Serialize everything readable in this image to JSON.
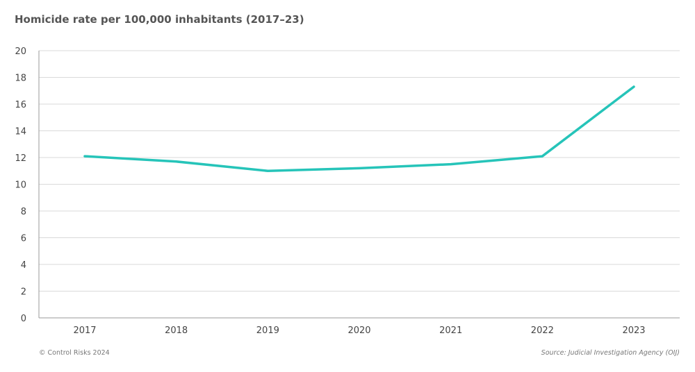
{
  "chart_data": {
    "type": "line",
    "title": "Homicide rate per 100,000 inhabitants (2017–23)",
    "xlabel": "",
    "ylabel": "",
    "categories": [
      "2017",
      "2018",
      "2019",
      "2020",
      "2021",
      "2022",
      "2023"
    ],
    "series": [
      {
        "values": [
          12.1,
          11.7,
          11.0,
          11.2,
          11.5,
          12.1,
          17.3
        ],
        "color": "#26c4b9"
      }
    ],
    "ylim": [
      0,
      20
    ],
    "yticks": [
      0,
      2,
      4,
      6,
      8,
      10,
      12,
      14,
      16,
      18,
      20
    ],
    "grid": true,
    "legend": "none"
  },
  "footer": {
    "copyright": "© Control Risks 2024",
    "source": "Source: Judicial Investigation Agency (OIJ)"
  }
}
